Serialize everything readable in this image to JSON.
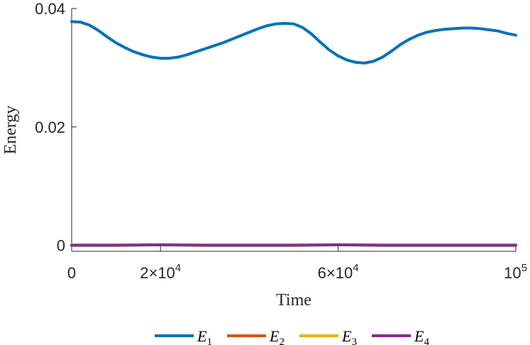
{
  "chart_data": {
    "type": "line",
    "title": "",
    "xlabel": "Time",
    "ylabel": "Energy",
    "xlim": [
      0,
      100000
    ],
    "ylim": [
      -0.001,
      0.04
    ],
    "x_ticks": [
      {
        "value": 0,
        "base": "0",
        "exp": ""
      },
      {
        "value": 20000,
        "base": "2×10",
        "exp": "4"
      },
      {
        "value": 60000,
        "base": "6×10",
        "exp": "4"
      },
      {
        "value": 100000,
        "base": "10",
        "exp": "5"
      }
    ],
    "y_ticks": [
      {
        "value": 0,
        "label": "0"
      },
      {
        "value": 0.02,
        "label": "0.02"
      },
      {
        "value": 0.04,
        "label": "0.04"
      }
    ],
    "grid": false,
    "legend_position": "bottom",
    "series": [
      {
        "name": "E",
        "sub": "1",
        "color": "#0072BD",
        "points": [
          [
            0,
            0.0378
          ],
          [
            2000,
            0.0377
          ],
          [
            4000,
            0.0372
          ],
          [
            6000,
            0.0363
          ],
          [
            8000,
            0.0352
          ],
          [
            10000,
            0.0342
          ],
          [
            12000,
            0.0334
          ],
          [
            14000,
            0.0327
          ],
          [
            16000,
            0.0322
          ],
          [
            18000,
            0.0318
          ],
          [
            20000,
            0.0316
          ],
          [
            22000,
            0.0316
          ],
          [
            24000,
            0.0318
          ],
          [
            26000,
            0.0322
          ],
          [
            28000,
            0.0327
          ],
          [
            30000,
            0.0332
          ],
          [
            32000,
            0.0337
          ],
          [
            34000,
            0.0342
          ],
          [
            36000,
            0.0348
          ],
          [
            38000,
            0.0354
          ],
          [
            40000,
            0.036
          ],
          [
            42000,
            0.0366
          ],
          [
            44000,
            0.0371
          ],
          [
            46000,
            0.0374
          ],
          [
            48000,
            0.0375
          ],
          [
            50000,
            0.0374
          ],
          [
            52000,
            0.0368
          ],
          [
            54000,
            0.0357
          ],
          [
            56000,
            0.0343
          ],
          [
            58000,
            0.033
          ],
          [
            60000,
            0.032
          ],
          [
            62000,
            0.0313
          ],
          [
            64000,
            0.0309
          ],
          [
            66000,
            0.0308
          ],
          [
            68000,
            0.0311
          ],
          [
            70000,
            0.0318
          ],
          [
            72000,
            0.0328
          ],
          [
            74000,
            0.0339
          ],
          [
            76000,
            0.0348
          ],
          [
            78000,
            0.0355
          ],
          [
            80000,
            0.036
          ],
          [
            82000,
            0.0363
          ],
          [
            84000,
            0.0365
          ],
          [
            86000,
            0.0366
          ],
          [
            88000,
            0.0367
          ],
          [
            90000,
            0.0367
          ],
          [
            92000,
            0.0366
          ],
          [
            94000,
            0.0364
          ],
          [
            96000,
            0.0362
          ],
          [
            98000,
            0.0358
          ],
          [
            100000,
            0.0355
          ]
        ]
      },
      {
        "name": "E",
        "sub": "2",
        "color": "#D95319",
        "points": [
          [
            0,
            0.0001
          ],
          [
            25000,
            0.0001
          ],
          [
            50000,
            0.0001
          ],
          [
            75000,
            0.0001
          ],
          [
            100000,
            0.0001
          ]
        ]
      },
      {
        "name": "E",
        "sub": "3",
        "color": "#EDB120",
        "points": [
          [
            0,
            0.0001
          ],
          [
            25000,
            0.0001
          ],
          [
            50000,
            0.0001
          ],
          [
            75000,
            0.0001
          ],
          [
            100000,
            0.0001
          ]
        ]
      },
      {
        "name": "E",
        "sub": "4",
        "color": "#7E2F8E",
        "points": [
          [
            0,
            0.0
          ],
          [
            10000,
            0.0
          ],
          [
            20000,
            0.0001
          ],
          [
            30000,
            0.0
          ],
          [
            40000,
            0.0
          ],
          [
            50000,
            0.0
          ],
          [
            60000,
            0.0001
          ],
          [
            70000,
            0.0
          ],
          [
            80000,
            0.0
          ],
          [
            90000,
            0.0
          ],
          [
            100000,
            0.0
          ]
        ]
      }
    ]
  }
}
